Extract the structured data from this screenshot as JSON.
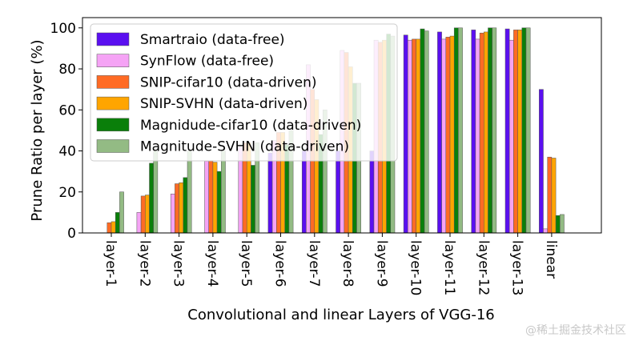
{
  "chart_data": {
    "type": "bar",
    "xlabel": "Convolutional and linear Layers of VGG-16",
    "ylabel": "Prune Ratio per layer (%)",
    "ylim": [
      0,
      105
    ],
    "yticks": [
      0,
      20,
      40,
      60,
      80,
      100
    ],
    "categories": [
      "layer-1",
      "layer-2",
      "layer-3",
      "layer-4",
      "layer-5",
      "layer-6",
      "layer-7",
      "layer-8",
      "layer-9",
      "layer-10",
      "layer-11",
      "layer-12",
      "layer-13",
      "linear"
    ],
    "legend_position": "top-left",
    "grid": false,
    "series": [
      {
        "name": "Smartraio (data-free)",
        "color": "#5a0ff0",
        "values": [
          0,
          0,
          0,
          0,
          0,
          39,
          40,
          40,
          40,
          96.5,
          98,
          99,
          99.5,
          70
        ]
      },
      {
        "name": "SynFlow (data-free)",
        "color": "#f5a3f5",
        "values": [
          0,
          10,
          19,
          35,
          42,
          45,
          82,
          89,
          94,
          94,
          94.5,
          94.5,
          94,
          2
        ]
      },
      {
        "name": "SNIP-cifar10 (data-driven)",
        "color": "#ff6b24",
        "values": [
          5,
          18,
          24,
          35,
          44,
          49,
          70,
          88,
          93,
          94.5,
          95.5,
          97.5,
          99,
          37
        ]
      },
      {
        "name": "SNIP-SVHN (data-driven)",
        "color": "#ffa500",
        "values": [
          5.5,
          18.5,
          24.5,
          34.5,
          44,
          49,
          65,
          81,
          94,
          94.5,
          96,
          98,
          99,
          36.5
        ]
      },
      {
        "name": "Magnidude-cifar10 (data-driven)",
        "color": "#0a7f0a",
        "values": [
          10,
          34,
          27,
          30,
          33,
          43,
          48,
          73,
          97,
          99.5,
          100,
          100,
          100,
          8.5
        ]
      },
      {
        "name": "Magnitude-SVHN (data-driven)",
        "color": "#93bb84",
        "values": [
          20,
          40,
          40,
          40,
          44,
          50,
          60,
          73,
          96,
          98.5,
          100,
          100,
          100,
          9
        ]
      }
    ]
  },
  "watermark": "@稀土掘金技术社区"
}
